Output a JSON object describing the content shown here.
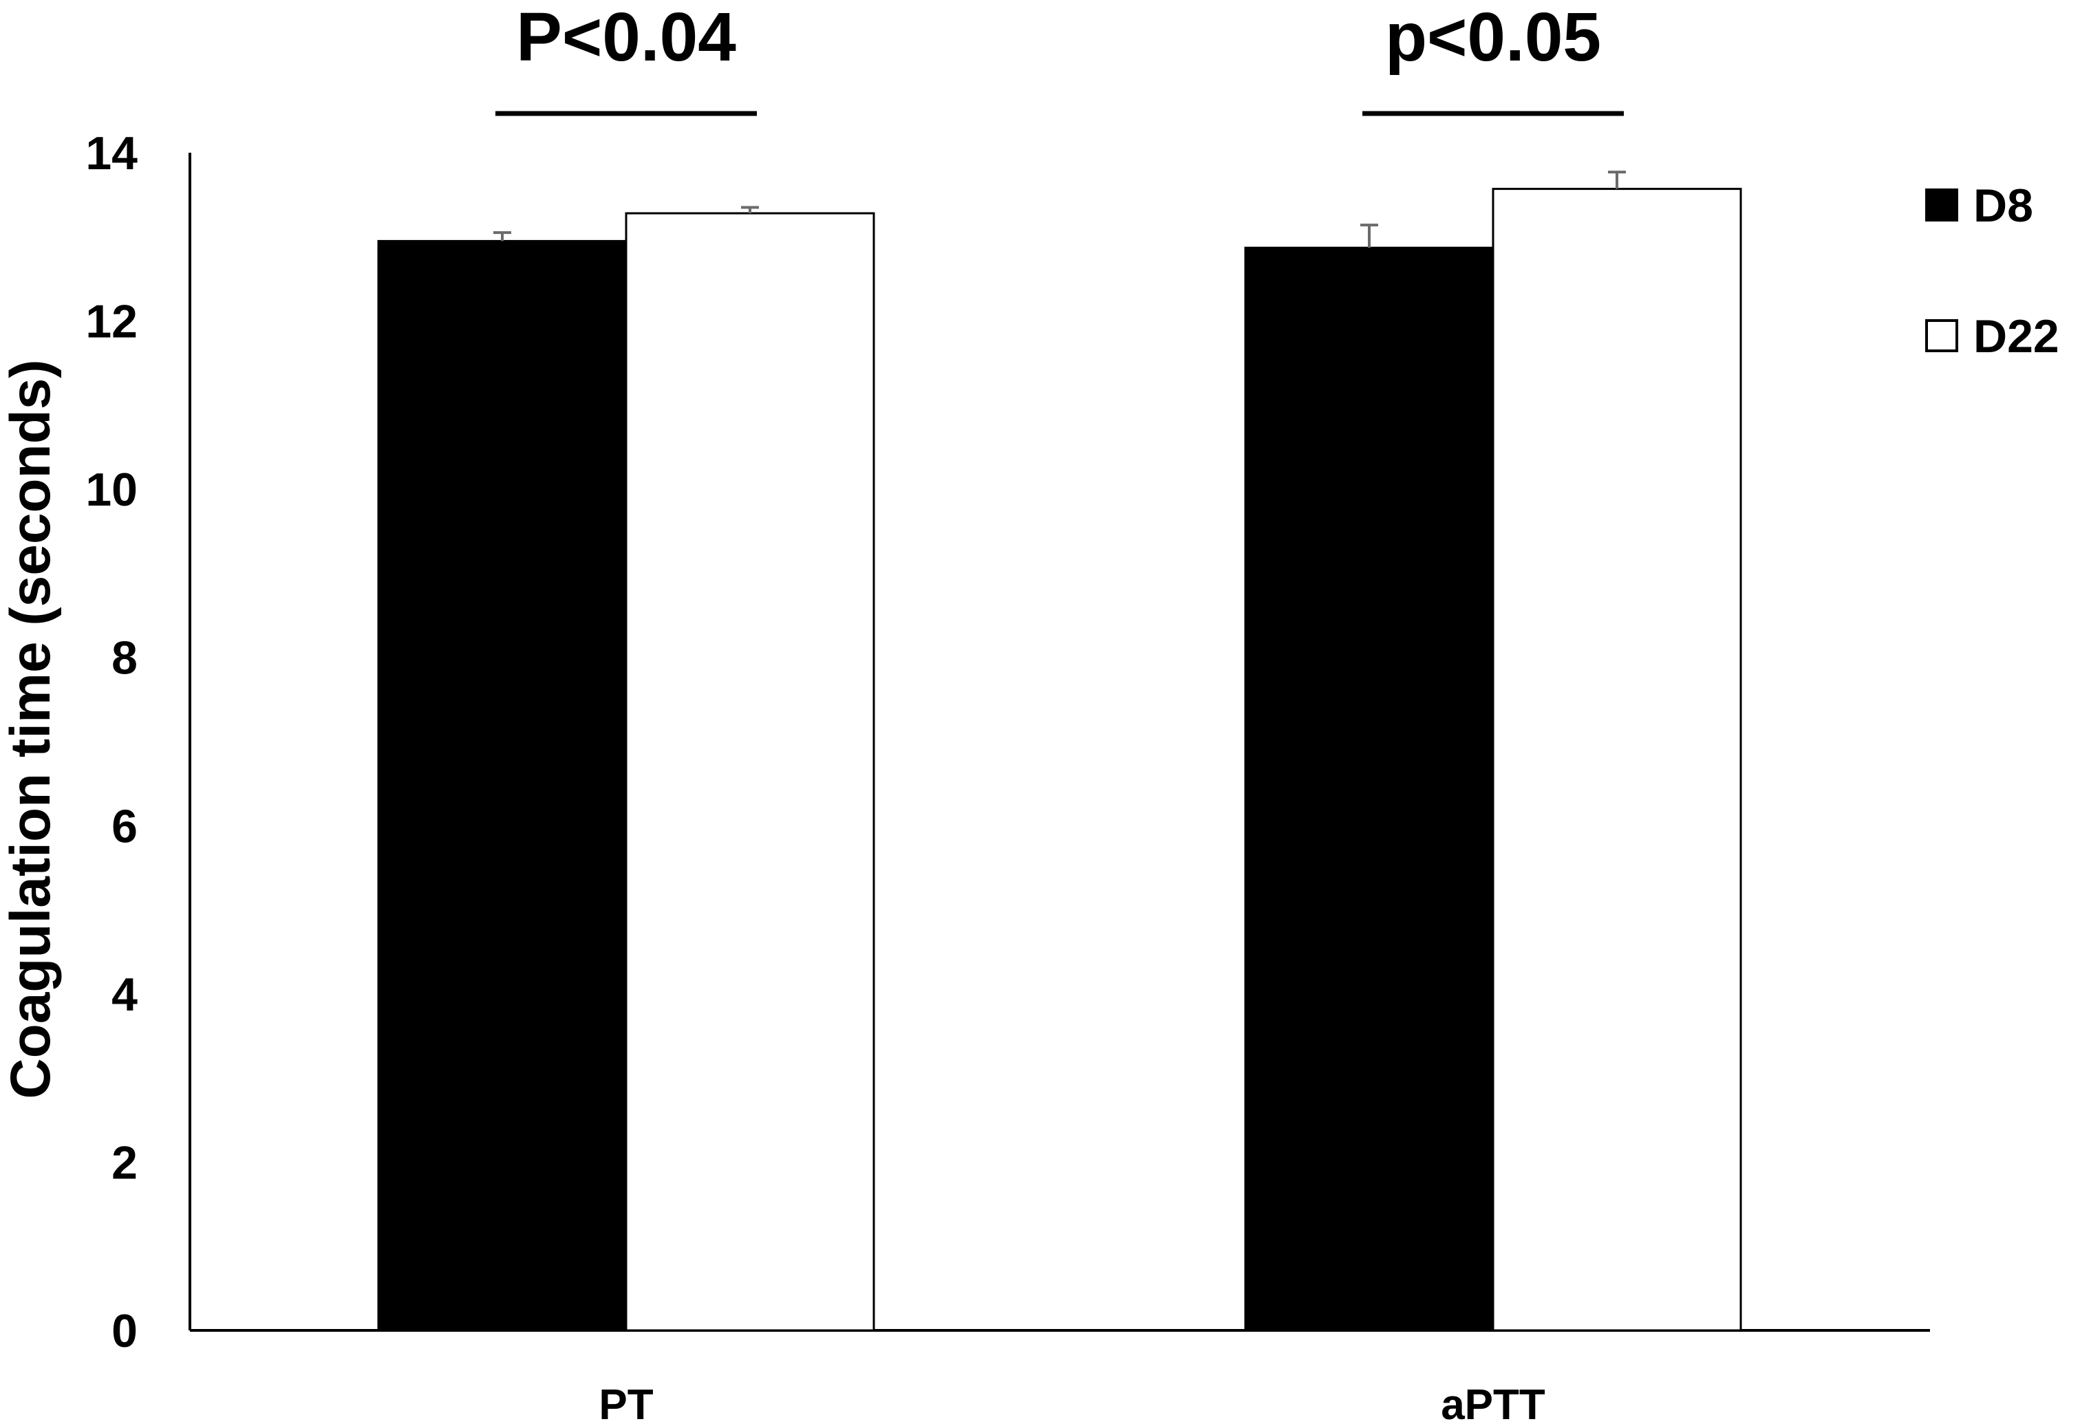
{
  "chart_data": {
    "type": "bar",
    "title": "",
    "xlabel": "",
    "ylabel": "Coagulation time (seconds)",
    "categories": [
      "PT",
      "aPTT"
    ],
    "ylim": [
      0,
      14
    ],
    "yticks": [
      "0",
      "2",
      "4",
      "6",
      "8",
      "10",
      "12",
      "14"
    ],
    "grid": false,
    "legend_position": "right",
    "series": [
      {
        "name": "D8",
        "values": [
          12.95,
          12.87
        ],
        "errors": [
          0.1,
          0.27
        ],
        "color": "#000000"
      },
      {
        "name": "D22",
        "values": [
          13.28,
          13.57
        ],
        "errors": [
          0.07,
          0.2
        ],
        "color": "#ffffff"
      }
    ],
    "annotations": [
      {
        "text": "P<0.04",
        "category": "PT"
      },
      {
        "text": "p<0.05",
        "category": "aPTT"
      }
    ],
    "error_bar_color": "#6b6b6b"
  }
}
